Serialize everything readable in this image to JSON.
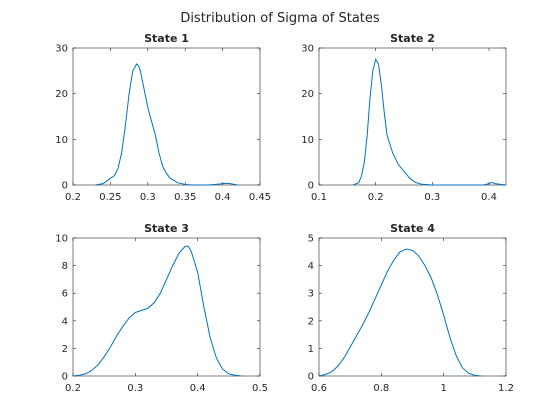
{
  "figure_title": "Distribution of Sigma of States",
  "chart_data": [
    {
      "type": "line",
      "title": "State 1",
      "xlabel": "",
      "ylabel": "",
      "xlim": [
        0.2,
        0.45
      ],
      "ylim": [
        0,
        30
      ],
      "xticks": [
        "0.2",
        "0.25",
        "0.3",
        "0.35",
        "0.4",
        "0.45"
      ],
      "yticks": [
        "0",
        "10",
        "20",
        "30"
      ],
      "grid": false,
      "x": [
        0.23,
        0.24,
        0.245,
        0.25,
        0.255,
        0.26,
        0.265,
        0.27,
        0.275,
        0.28,
        0.285,
        0.288,
        0.29,
        0.295,
        0.3,
        0.305,
        0.31,
        0.315,
        0.32,
        0.325,
        0.33,
        0.34,
        0.35,
        0.36,
        0.38,
        0.39,
        0.4,
        0.405,
        0.41,
        0.42
      ],
      "y": [
        0,
        0.3,
        0.8,
        1.5,
        2.0,
        3.5,
        7,
        13,
        20,
        25,
        26.5,
        26,
        25,
        21,
        17,
        14,
        11,
        7,
        4,
        2.5,
        1.5,
        0.5,
        0.1,
        0,
        0,
        0.1,
        0.3,
        0.4,
        0.3,
        0
      ]
    },
    {
      "type": "line",
      "title": "State 2",
      "xlabel": "",
      "ylabel": "",
      "xlim": [
        0.1,
        0.43
      ],
      "ylim": [
        0,
        30
      ],
      "xticks": [
        "0.1",
        "0.2",
        "0.3",
        "0.4"
      ],
      "yticks": [
        "0",
        "10",
        "20",
        "30"
      ],
      "grid": false,
      "x": [
        0.16,
        0.17,
        0.175,
        0.18,
        0.185,
        0.19,
        0.195,
        0.2,
        0.205,
        0.21,
        0.215,
        0.22,
        0.23,
        0.24,
        0.25,
        0.26,
        0.27,
        0.28,
        0.3,
        0.35,
        0.39,
        0.4,
        0.405,
        0.41,
        0.43
      ],
      "y": [
        0,
        0.5,
        2,
        5,
        11,
        19,
        25,
        27.5,
        26.5,
        22,
        16,
        11,
        7,
        4.5,
        3,
        1.5,
        0.6,
        0.2,
        0,
        0,
        0,
        0.3,
        0.6,
        0.3,
        0
      ]
    },
    {
      "type": "line",
      "title": "State 3",
      "xlabel": "",
      "ylabel": "",
      "xlim": [
        0.2,
        0.5
      ],
      "ylim": [
        0,
        10
      ],
      "xticks": [
        "0.2",
        "0.3",
        "0.4",
        "0.5"
      ],
      "yticks": [
        "0",
        "2",
        "4",
        "6",
        "8",
        "10"
      ],
      "grid": false,
      "x": [
        0.2,
        0.21,
        0.22,
        0.23,
        0.24,
        0.25,
        0.26,
        0.27,
        0.28,
        0.29,
        0.3,
        0.31,
        0.32,
        0.33,
        0.34,
        0.35,
        0.36,
        0.37,
        0.38,
        0.385,
        0.39,
        0.4,
        0.41,
        0.42,
        0.43,
        0.44,
        0.45,
        0.46,
        0.47
      ],
      "y": [
        0,
        0.05,
        0.15,
        0.4,
        0.8,
        1.4,
        2.1,
        2.9,
        3.6,
        4.2,
        4.6,
        4.75,
        4.9,
        5.3,
        6.0,
        7.0,
        8.0,
        8.9,
        9.4,
        9.4,
        9.0,
        7.5,
        5.0,
        2.8,
        1.3,
        0.5,
        0.15,
        0.05,
        0
      ]
    },
    {
      "type": "line",
      "title": "State 4",
      "xlabel": "",
      "ylabel": "",
      "xlim": [
        0.6,
        1.2
      ],
      "ylim": [
        0,
        5
      ],
      "xticks": [
        "0.6",
        "0.8",
        "1",
        "1.2"
      ],
      "yticks": [
        "0",
        "1",
        "2",
        "3",
        "4",
        "5"
      ],
      "grid": false,
      "x": [
        0.6,
        0.62,
        0.64,
        0.66,
        0.68,
        0.7,
        0.72,
        0.74,
        0.76,
        0.78,
        0.8,
        0.82,
        0.84,
        0.86,
        0.88,
        0.9,
        0.92,
        0.94,
        0.96,
        0.98,
        1.0,
        1.02,
        1.04,
        1.06,
        1.08,
        1.1,
        1.12
      ],
      "y": [
        0,
        0.05,
        0.15,
        0.35,
        0.65,
        1.05,
        1.45,
        1.85,
        2.3,
        2.8,
        3.3,
        3.8,
        4.2,
        4.5,
        4.6,
        4.55,
        4.35,
        4.0,
        3.55,
        2.95,
        2.2,
        1.4,
        0.75,
        0.3,
        0.1,
        0.02,
        0
      ]
    }
  ]
}
